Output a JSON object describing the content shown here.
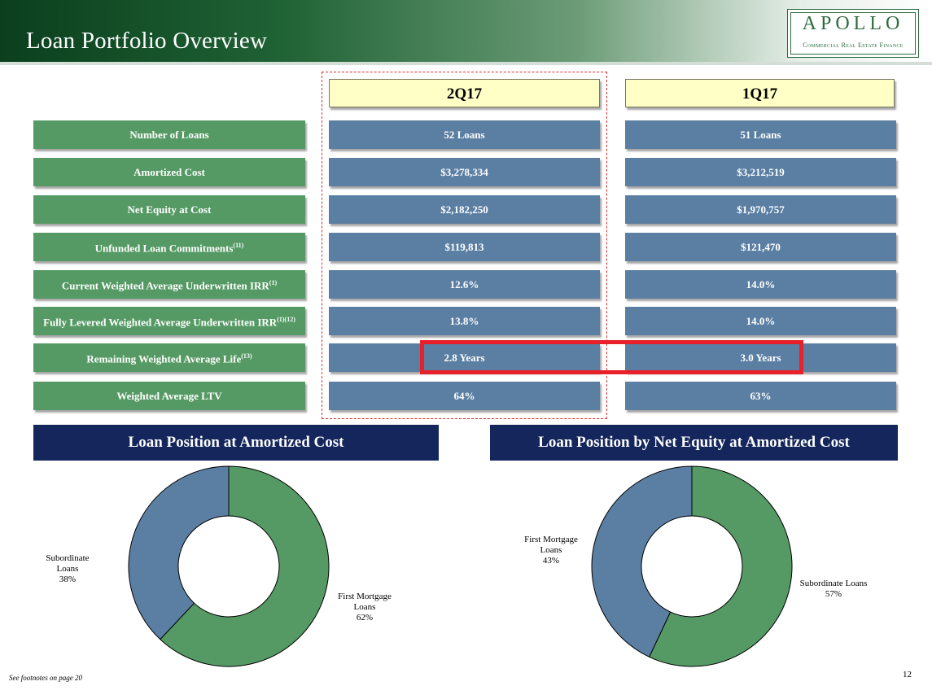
{
  "header": {
    "title": "Loan Portfolio Overview",
    "logo_main": "APOLLO",
    "logo_sub": "Commercial Real Estate Finance"
  },
  "columns": [
    "2Q17",
    "1Q17"
  ],
  "rows": [
    {
      "label": "Number of Loans",
      "sup": "",
      "q2": "52 Loans",
      "q1": "51 Loans"
    },
    {
      "label": "Amortized Cost",
      "sup": "",
      "q2": "$3,278,334",
      "q1": "$3,212,519"
    },
    {
      "label": "Net Equity at Cost",
      "sup": "",
      "q2": "$2,182,250",
      "q1": "$1,970,757"
    },
    {
      "label": "Unfunded Loan Commitments",
      "sup": "(11)",
      "q2": "$119,813",
      "q1": "$121,470"
    },
    {
      "label": "Current Weighted Average Underwritten IRR",
      "sup": "(1)",
      "q2": "12.6%",
      "q1": "14.0%"
    },
    {
      "label": "Fully Levered Weighted Average Underwritten IRR",
      "sup": "(1)(12)",
      "q2": "13.8%",
      "q1": "14.0%"
    },
    {
      "label": "Remaining Weighted Average Life",
      "sup": "(13)",
      "q2": "2.8 Years",
      "q1": "3.0 Years"
    },
    {
      "label": "Weighted Average LTV",
      "sup": "",
      "q2": "64%",
      "q1": "63%"
    }
  ],
  "colors": {
    "green": "#559a64",
    "blue": "#5b7fa3",
    "navy": "#14265c",
    "highlight_red": "#e8202a",
    "column_header": "#ffffc6"
  },
  "chart_data": [
    {
      "type": "pie",
      "title": "Loan Position at Amortized Cost",
      "slices": [
        {
          "label": "First Mortgage Loans",
          "value": 62,
          "display": "62%",
          "color": "#559a64"
        },
        {
          "label": "Subordinate Loans",
          "value": 38,
          "display": "38%",
          "color": "#5b7fa3"
        }
      ]
    },
    {
      "type": "pie",
      "title": "Loan Position by Net Equity at Amortized Cost",
      "slices": [
        {
          "label": "Subordinate Loans",
          "value": 57,
          "display": "57%",
          "color": "#559a64"
        },
        {
          "label": "First Mortgage Loans",
          "value": 43,
          "display": "43%",
          "color": "#5b7fa3"
        }
      ]
    }
  ],
  "footer": {
    "footnote": "See footnotes on page 20",
    "page_number": "12"
  }
}
